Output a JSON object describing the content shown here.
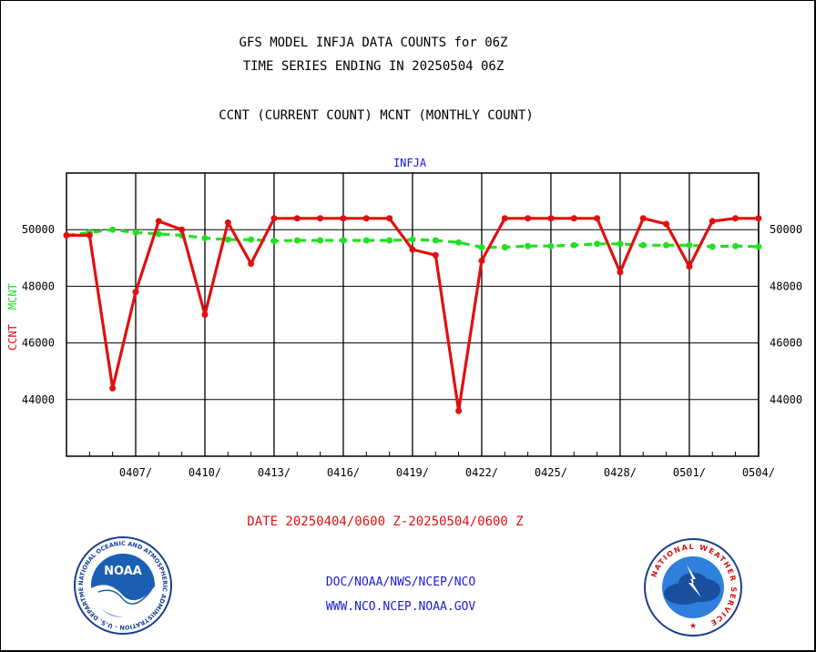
{
  "header": {
    "title_line1": "GFS MODEL INFJA DATA COUNTS for 06Z",
    "title_line2": "TIME SERIES ENDING IN 20250504 06Z",
    "subtitle": "CCNT (CURRENT COUNT) MCNT (MONTHLY COUNT)"
  },
  "footer": {
    "date_range": "DATE 20250404/0600 Z-20250504/0600 Z",
    "doc_line": "DOC/NOAA/NWS/NCEP/NCO",
    "www_line": "WWW.NCO.NCEP.NOAA.GOV"
  },
  "logos": {
    "noaa": {
      "name": "noaa-logo",
      "text": "NOAA",
      "ring_text": "NATIONAL OCEANIC AND ATMOSPHERIC ADMINISTRATION - U.S. DEPARTMENT OF COMMERCE"
    },
    "nws": {
      "name": "nws-logo",
      "ring_text": "NATIONAL WEATHER SERVICE"
    }
  },
  "colors": {
    "ccnt": "#e01010",
    "mcnt": "#22e022",
    "label_blue": "#1515d6",
    "noaa_blue": "#1a5fb4",
    "nws_blue": "#2f7fdc"
  },
  "chart_data": {
    "type": "line",
    "plot_label": "INFJA",
    "ylabel_left": "CCNT",
    "ylabel_right": "MCNT",
    "ylim": [
      42000,
      52000
    ],
    "yticks": [
      44000,
      46000,
      48000,
      50000
    ],
    "ytick_labels": [
      "44000",
      "46000",
      "48000",
      "50000"
    ],
    "xlim": [
      0,
      30
    ],
    "x_tick_labels": [
      {
        "x": 3,
        "label": "0407/"
      },
      {
        "x": 6,
        "label": "0410/"
      },
      {
        "x": 9,
        "label": "0413/"
      },
      {
        "x": 12,
        "label": "0416/"
      },
      {
        "x": 15,
        "label": "0419/"
      },
      {
        "x": 18,
        "label": "0422/"
      },
      {
        "x": 21,
        "label": "0425/"
      },
      {
        "x": 24,
        "label": "0428/"
      },
      {
        "x": 27,
        "label": "0501/"
      },
      {
        "x": 30,
        "label": "0504/"
      }
    ],
    "grid": true,
    "series": [
      {
        "name": "CCNT",
        "color": "#e01010",
        "x": [
          0,
          1,
          2,
          3,
          4,
          5,
          6,
          7,
          8,
          9,
          10,
          11,
          12,
          13,
          14,
          15,
          16,
          17,
          18,
          19,
          20,
          21,
          22,
          23,
          24,
          25,
          26,
          27,
          28,
          29,
          30
        ],
        "values": [
          49800,
          49800,
          44400,
          47800,
          50300,
          50000,
          47000,
          50250,
          48800,
          50400,
          50400,
          50400,
          50400,
          50400,
          50400,
          49300,
          49100,
          43600,
          48900,
          50400,
          50400,
          50400,
          50400,
          50400,
          48500,
          50400,
          50200,
          48700,
          50300,
          50400,
          50400
        ]
      },
      {
        "name": "MCNT",
        "color": "#22e022",
        "x": [
          0,
          1,
          2,
          3,
          4,
          5,
          6,
          7,
          8,
          9,
          10,
          11,
          12,
          13,
          14,
          15,
          16,
          17,
          18,
          19,
          20,
          21,
          22,
          23,
          24,
          25,
          26,
          27,
          28,
          29,
          30
        ],
        "values": [
          49800,
          49900,
          50000,
          49900,
          49850,
          49800,
          49700,
          49650,
          49650,
          49600,
          49620,
          49620,
          49620,
          49620,
          49620,
          49650,
          49620,
          49550,
          49380,
          49380,
          49420,
          49420,
          49450,
          49500,
          49500,
          49450,
          49450,
          49450,
          49400,
          49420,
          49400
        ]
      }
    ]
  }
}
